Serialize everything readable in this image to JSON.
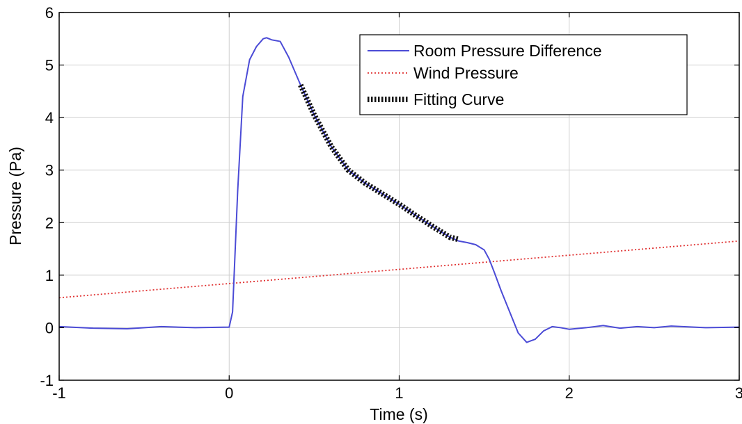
{
  "chart_data": {
    "type": "line",
    "title": "",
    "xlabel": "Time (s)",
    "ylabel": "Pressure (Pa)",
    "xlim": [
      -1,
      3
    ],
    "ylim": [
      -1,
      6
    ],
    "xticks": [
      -1,
      0,
      1,
      2,
      3
    ],
    "yticks": [
      -1,
      0,
      1,
      2,
      3,
      4,
      5,
      6
    ],
    "grid": true,
    "legend_position": "top-right",
    "series": [
      {
        "name": "Room Pressure Difference",
        "color": "#4b4bd6",
        "style": "solid",
        "x": [
          -1.0,
          -0.8,
          -0.6,
          -0.4,
          -0.2,
          0.0,
          0.02,
          0.05,
          0.08,
          0.12,
          0.16,
          0.2,
          0.22,
          0.25,
          0.3,
          0.35,
          0.42,
          0.5,
          0.6,
          0.7,
          0.8,
          0.9,
          1.0,
          1.1,
          1.2,
          1.3,
          1.35,
          1.4,
          1.45,
          1.5,
          1.53,
          1.56,
          1.6,
          1.65,
          1.7,
          1.75,
          1.8,
          1.85,
          1.9,
          1.95,
          2.0,
          2.1,
          2.2,
          2.3,
          2.4,
          2.5,
          2.6,
          2.8,
          3.0
        ],
        "y": [
          0.02,
          -0.01,
          -0.02,
          0.02,
          0.0,
          0.01,
          0.3,
          2.6,
          4.4,
          5.1,
          5.35,
          5.5,
          5.52,
          5.48,
          5.45,
          5.15,
          4.62,
          4.05,
          3.45,
          3.0,
          2.75,
          2.55,
          2.35,
          2.13,
          1.92,
          1.72,
          1.65,
          1.62,
          1.58,
          1.48,
          1.3,
          1.05,
          0.7,
          0.3,
          -0.1,
          -0.28,
          -0.22,
          -0.06,
          0.02,
          0.0,
          -0.03,
          0.0,
          0.04,
          -0.01,
          0.02,
          0.0,
          0.03,
          0.0,
          0.01
        ]
      },
      {
        "name": "Wind Pressure",
        "color": "#e03030",
        "style": "dotted",
        "x": [
          -1.0,
          3.0
        ],
        "y": [
          0.57,
          1.65
        ]
      },
      {
        "name": "Fitting Curve",
        "color": "#111111",
        "style": "thick-dotted",
        "x": [
          0.42,
          0.5,
          0.6,
          0.7,
          0.8,
          0.9,
          1.0,
          1.1,
          1.2,
          1.3,
          1.35
        ],
        "y": [
          4.62,
          4.05,
          3.45,
          3.0,
          2.75,
          2.55,
          2.35,
          2.13,
          1.92,
          1.72,
          1.68
        ]
      }
    ]
  }
}
